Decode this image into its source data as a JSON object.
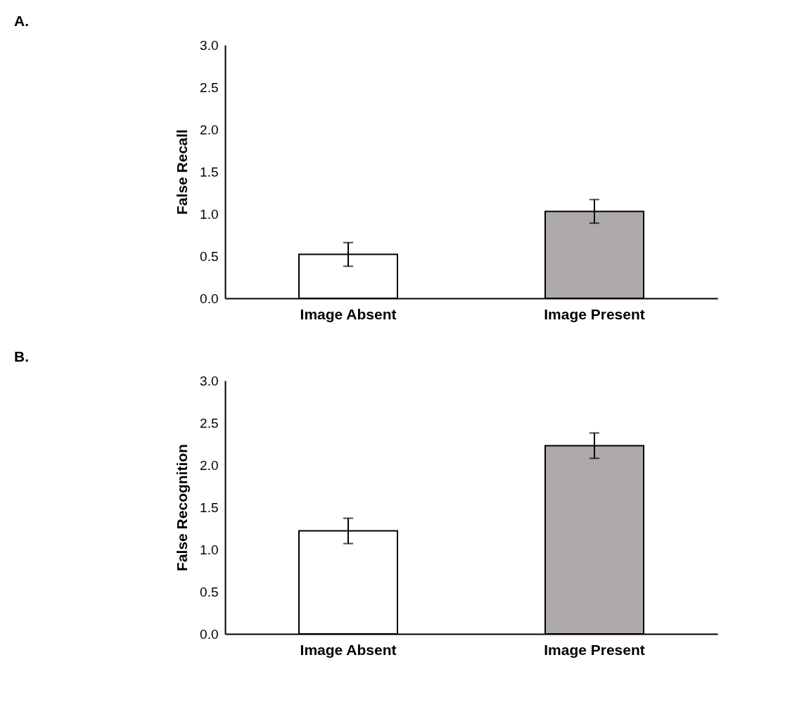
{
  "chart_data": [
    {
      "type": "bar",
      "annotations": [
        "A."
      ],
      "ylabel": "False Recall",
      "categories": [
        "Image Absent",
        "Image Present"
      ],
      "values": [
        0.52,
        1.03
      ],
      "errors": [
        0.14,
        0.14
      ],
      "colors": [
        "#ffffff",
        "#aeaaaa"
      ],
      "ylim": [
        0,
        3
      ],
      "yticks": [
        {
          "value": 0,
          "label": "0.0"
        },
        {
          "value": 0.5,
          "label": "0.5"
        },
        {
          "value": 1,
          "label": "1.0"
        },
        {
          "value": 1.5,
          "label": "1.5"
        },
        {
          "value": 2,
          "label": "2.0"
        },
        {
          "value": 2.5,
          "label": "2.5"
        },
        {
          "value": 3,
          "label": "3.0"
        }
      ],
      "grid": false,
      "legend": false
    },
    {
      "type": "bar",
      "annotations": [
        "B."
      ],
      "ylabel": "False Recognition",
      "categories": [
        "Image Absent",
        "Image Present"
      ],
      "values": [
        1.22,
        2.23
      ],
      "errors": [
        0.15,
        0.15
      ],
      "colors": [
        "#ffffff",
        "#aeaaaa"
      ],
      "ylim": [
        0,
        3
      ],
      "yticks": [
        {
          "value": 0,
          "label": "0.0"
        },
        {
          "value": 0.5,
          "label": "0.5"
        },
        {
          "value": 1,
          "label": "1.0"
        },
        {
          "value": 1.5,
          "label": "1.5"
        },
        {
          "value": 2,
          "label": "2.0"
        },
        {
          "value": 2.5,
          "label": "2.5"
        },
        {
          "value": 3,
          "label": "3.0"
        }
      ],
      "grid": false,
      "legend": false
    }
  ]
}
